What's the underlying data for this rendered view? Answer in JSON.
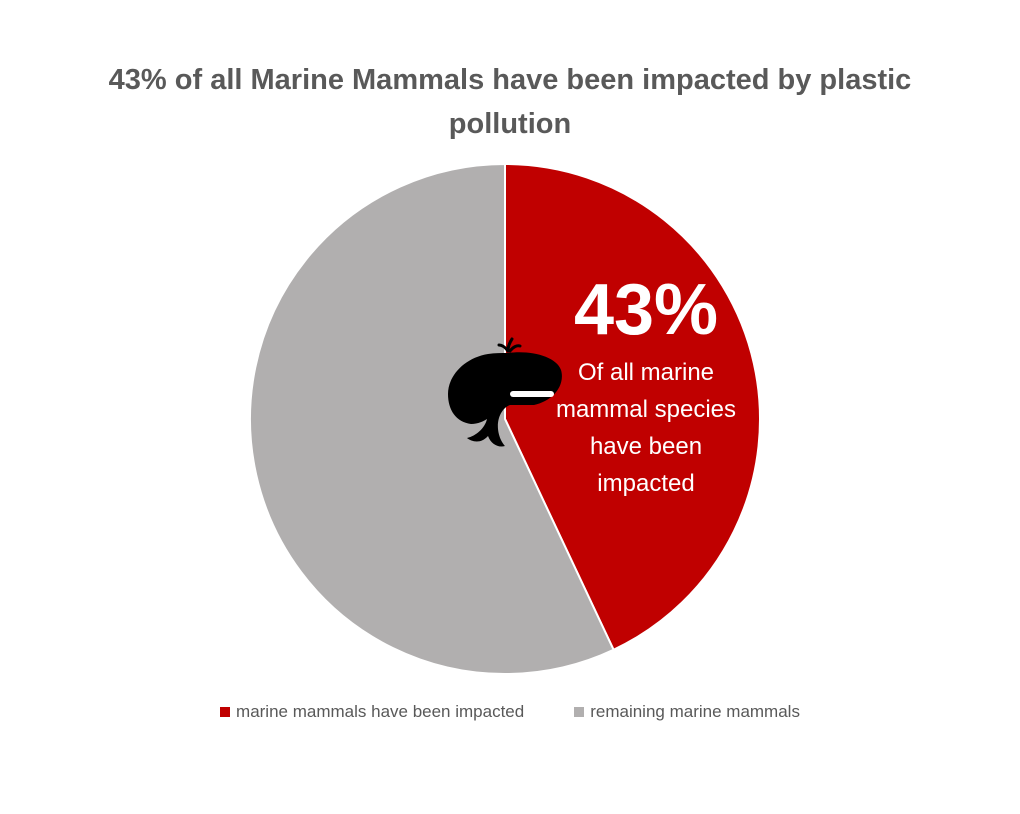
{
  "chart_data": {
    "type": "pie",
    "title": "43% of all Marine Mammals have been impacted by plastic pollution",
    "categories": [
      "marine mammals have been impacted",
      "remaining marine mammals"
    ],
    "values": [
      43,
      57
    ],
    "colors": [
      "#c00000",
      "#b1afaf"
    ],
    "start_angle_deg": 0,
    "direction": "clockwise",
    "legend_position": "bottom",
    "callout": {
      "value": "43%",
      "text": "Of all marine mammal species have been impacted",
      "icon": "whale-icon"
    }
  }
}
